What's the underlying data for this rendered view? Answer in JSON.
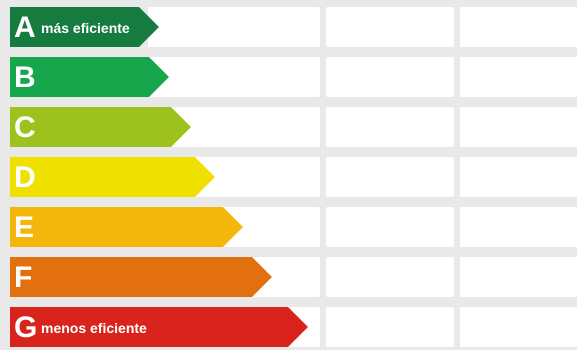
{
  "classes": [
    {
      "letter": "A",
      "description": "más eficiente",
      "color": "#167b3e"
    },
    {
      "letter": "B",
      "description": "",
      "color": "#18a64c"
    },
    {
      "letter": "C",
      "description": "",
      "color": "#9ec21d"
    },
    {
      "letter": "D",
      "description": "",
      "color": "#f0e000"
    },
    {
      "letter": "E",
      "description": "",
      "color": "#f3b70b"
    },
    {
      "letter": "F",
      "description": "",
      "color": "#e3700f"
    },
    {
      "letter": "G",
      "description": "menos eficiente",
      "color": "#d9231d"
    }
  ],
  "colors": {
    "background": "#e9e9e9",
    "cell": "#ffffff",
    "text": "#ffffff"
  }
}
